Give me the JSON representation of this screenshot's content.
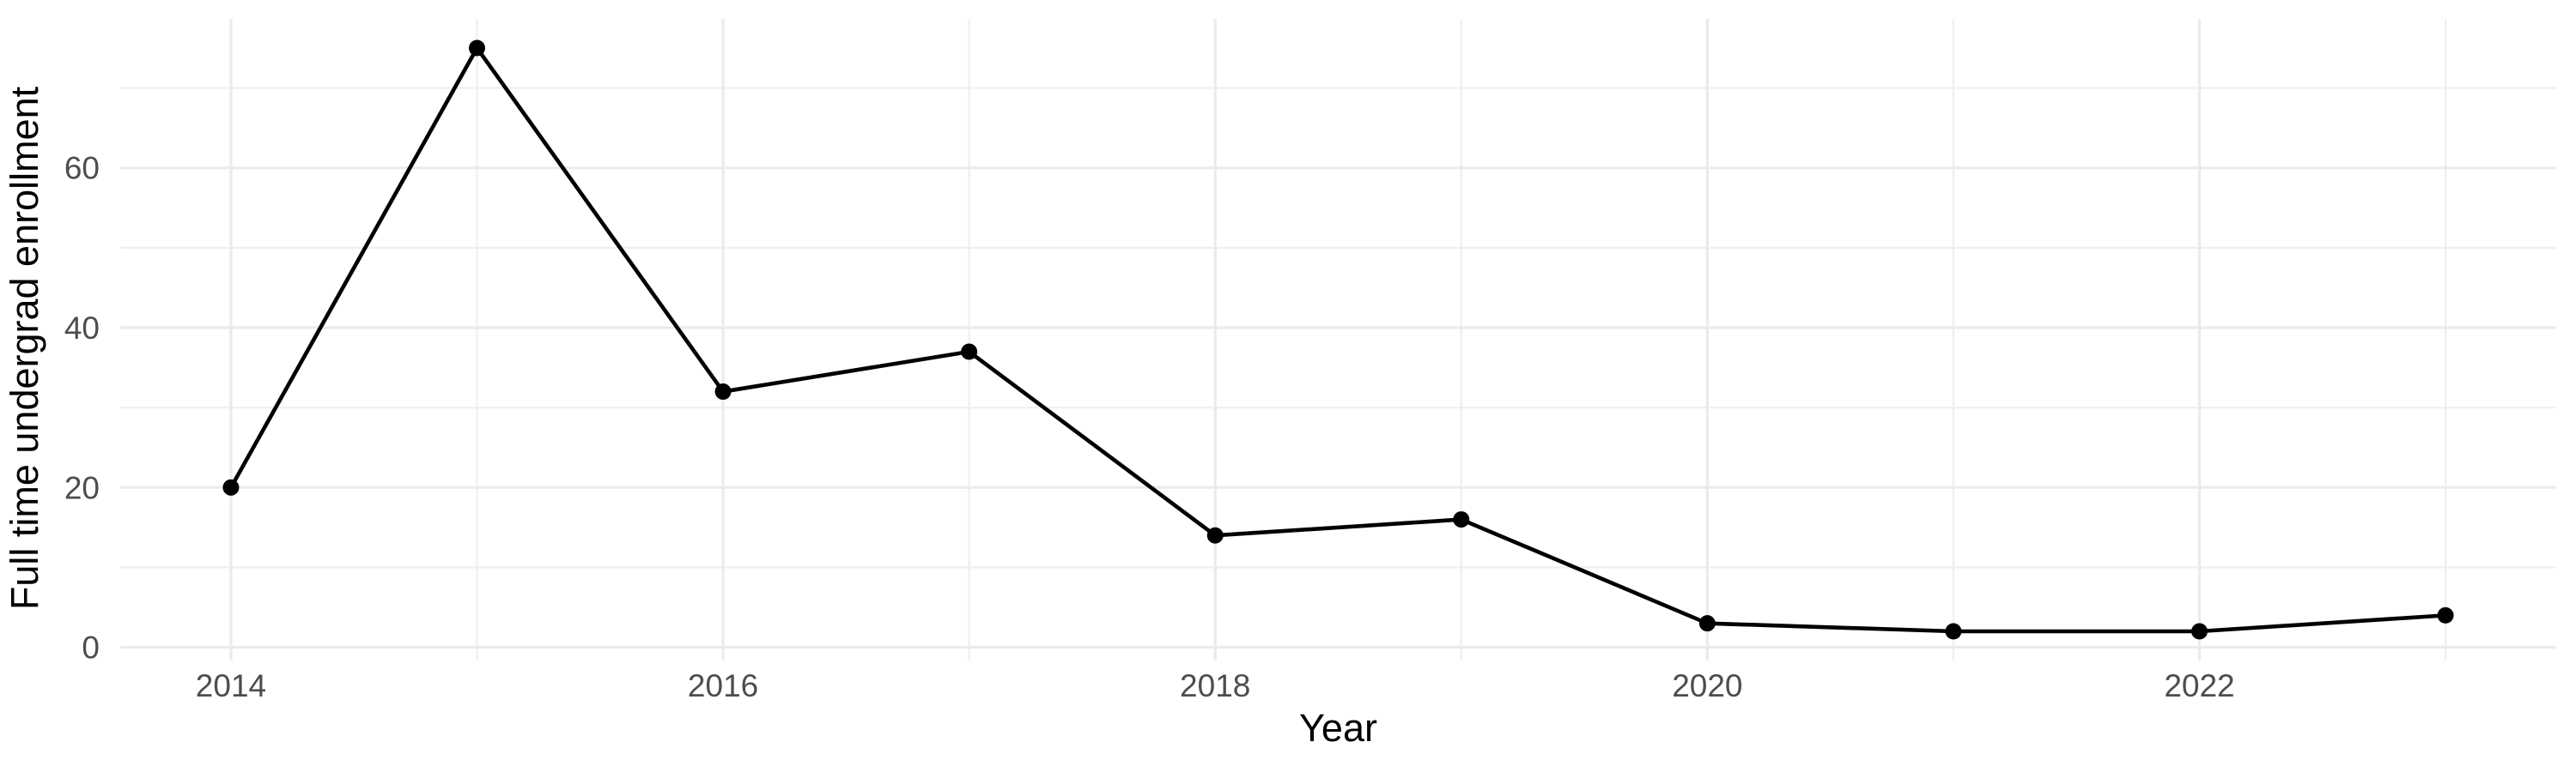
{
  "chart_data": {
    "type": "line",
    "title": "",
    "xlabel": "Year",
    "ylabel": "Full time undergrad enrollment",
    "x": [
      2014,
      2015,
      2016,
      2017,
      2018,
      2019,
      2020,
      2021,
      2022,
      2023
    ],
    "series": [
      {
        "name": "Full time undergrad enrollment",
        "values": [
          20,
          75,
          32,
          37,
          14,
          16,
          3,
          2,
          2,
          4
        ]
      }
    ],
    "x_major_ticks": [
      2014,
      2016,
      2018,
      2020,
      2022
    ],
    "x_tick_labels": [
      "2014",
      "2016",
      "2018",
      "2020",
      "2022"
    ],
    "x_minor_ticks": [
      2015,
      2017,
      2019,
      2021,
      2023
    ],
    "y_major_ticks": [
      0,
      20,
      40,
      60
    ],
    "y_tick_labels": [
      "0",
      "20",
      "40",
      "60"
    ],
    "y_minor_ticks": [
      10,
      30,
      50,
      70
    ],
    "xlim": [
      2013.55,
      2023.45
    ],
    "ylim": [
      -1.65,
      78.65
    ],
    "grid": true,
    "legend": false,
    "marker": "circle",
    "line_style": "solid",
    "colors": {
      "line": "#000000",
      "point": "#000000",
      "grid_major": "#EBEBEB",
      "grid_minor": "#EFEFEF",
      "tick_label": "#4D4D4D",
      "axis_title": "#000000",
      "background": "#FFFFFF"
    }
  }
}
